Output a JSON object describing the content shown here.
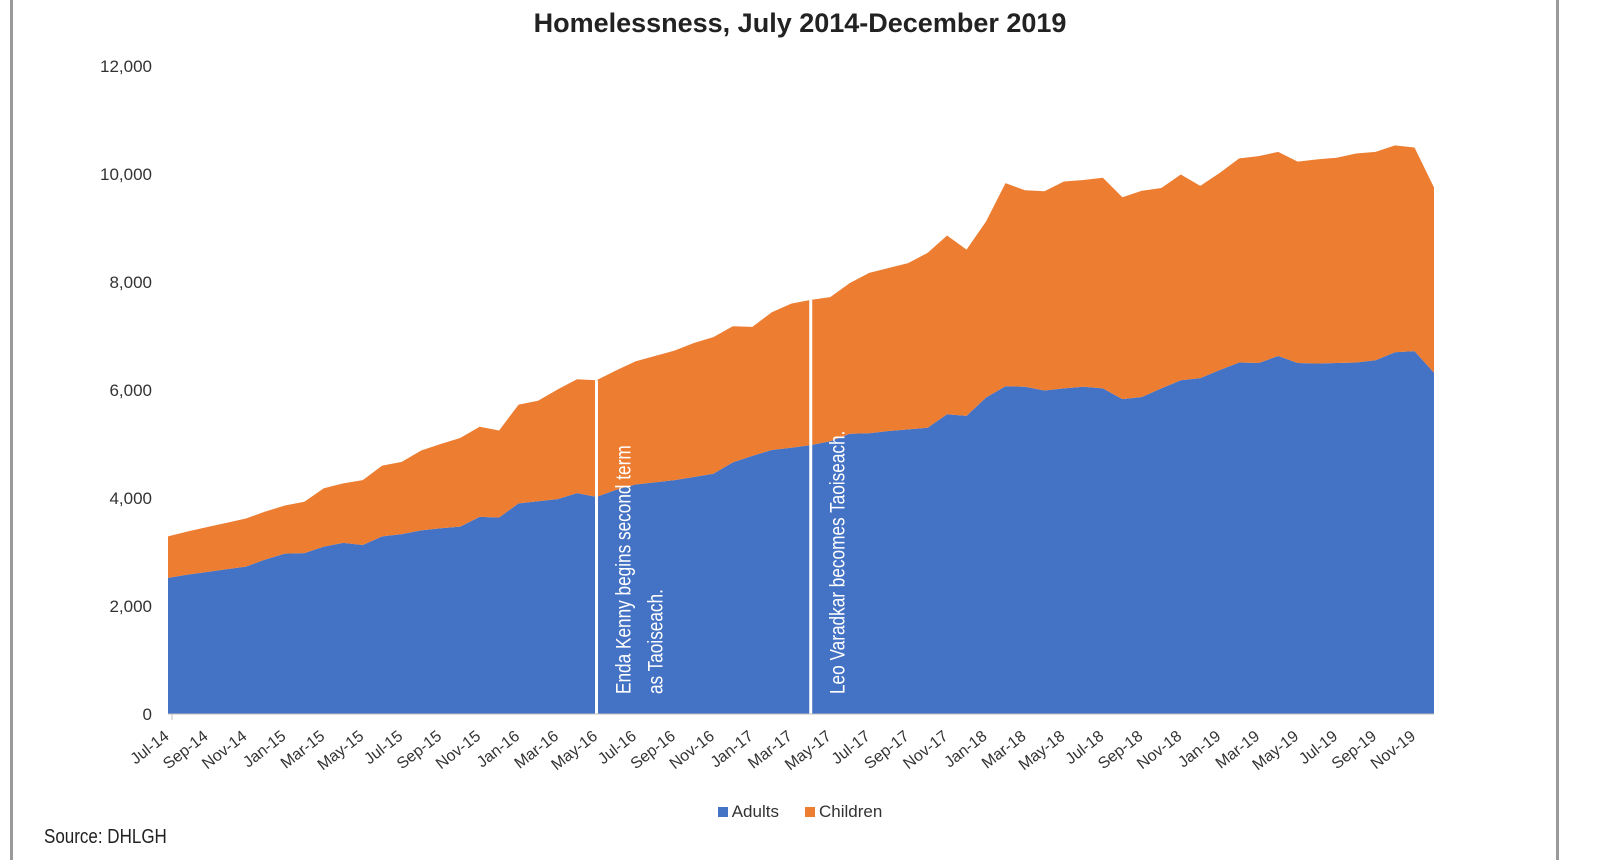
{
  "chart_data": {
    "type": "area",
    "stacked": true,
    "title": "Homelessness, July 2014-December 2019",
    "ylim": [
      0,
      12000
    ],
    "yticks": [
      0,
      2000,
      4000,
      6000,
      8000,
      10000,
      12000
    ],
    "ytick_labels": [
      "0",
      "2,000",
      "4,000",
      "6,000",
      "8,000",
      "10,000",
      "12,000"
    ],
    "x": [
      "Jul-14",
      "Aug-14",
      "Sep-14",
      "Oct-14",
      "Nov-14",
      "Dec-14",
      "Jan-15",
      "Feb-15",
      "Mar-15",
      "Apr-15",
      "May-15",
      "Jun-15",
      "Jul-15",
      "Aug-15",
      "Sep-15",
      "Oct-15",
      "Nov-15",
      "Dec-15",
      "Jan-16",
      "Feb-16",
      "Mar-16",
      "Apr-16",
      "May-16",
      "Jun-16",
      "Jul-16",
      "Aug-16",
      "Sep-16",
      "Oct-16",
      "Nov-16",
      "Dec-16",
      "Jan-17",
      "Feb-17",
      "Mar-17",
      "Apr-17",
      "May-17",
      "Jun-17",
      "Jul-17",
      "Aug-17",
      "Sep-17",
      "Oct-17",
      "Nov-17",
      "Dec-17",
      "Jan-18",
      "Feb-18",
      "Mar-18",
      "Apr-18",
      "May-18",
      "Jun-18",
      "Jul-18",
      "Aug-18",
      "Sep-18",
      "Oct-18",
      "Nov-18",
      "Dec-18",
      "Jan-19",
      "Feb-19",
      "Mar-19",
      "Apr-19",
      "May-19",
      "Jun-19",
      "Jul-19",
      "Aug-19",
      "Sep-19",
      "Oct-19",
      "Nov-19",
      "Dec-19"
    ],
    "x_tick_labels": [
      "Jul-14",
      "Sep-14",
      "Nov-14",
      "Jan-15",
      "Mar-15",
      "May-15",
      "Jul-15",
      "Sep-15",
      "Nov-15",
      "Jan-16",
      "Mar-16",
      "May-16",
      "Jul-16",
      "Sep-16",
      "Nov-16",
      "Jan-17",
      "Mar-17",
      "May-17",
      "Jul-17",
      "Sep-17",
      "Nov-17",
      "Jan-18",
      "Mar-18",
      "May-18",
      "Jul-18",
      "Sep-18",
      "Nov-18",
      "Jan-19",
      "Mar-19",
      "May-19",
      "Jul-19",
      "Sep-19",
      "Nov-19"
    ],
    "series": [
      {
        "name": "Adults",
        "color": "#4472C4",
        "values": [
          2520,
          2580,
          2630,
          2680,
          2730,
          2860,
          2970,
          2980,
          3100,
          3170,
          3130,
          3290,
          3330,
          3400,
          3440,
          3470,
          3650,
          3640,
          3900,
          3940,
          3980,
          4090,
          4020,
          4150,
          4250,
          4290,
          4330,
          4390,
          4450,
          4660,
          4780,
          4890,
          4930,
          4980,
          5050,
          5190,
          5200,
          5240,
          5270,
          5300,
          5550,
          5520,
          5860,
          6070,
          6060,
          5990,
          6030,
          6060,
          6030,
          5830,
          5870,
          6030,
          6180,
          6220,
          6370,
          6510,
          6500,
          6630,
          6500,
          6490,
          6500,
          6510,
          6550,
          6700,
          6720,
          6320
        ]
      },
      {
        "name": "Children",
        "color": "#ED7D31",
        "values": [
          770,
          800,
          830,
          860,
          890,
          890,
          890,
          950,
          1080,
          1100,
          1200,
          1310,
          1340,
          1480,
          1560,
          1640,
          1670,
          1610,
          1830,
          1860,
          2030,
          2110,
          2160,
          2210,
          2280,
          2340,
          2400,
          2480,
          2530,
          2520,
          2390,
          2550,
          2670,
          2690,
          2670,
          2790,
          2970,
          3020,
          3080,
          3240,
          3310,
          3080,
          3260,
          3760,
          3640,
          3690,
          3830,
          3830,
          3900,
          3740,
          3820,
          3710,
          3810,
          3560,
          3650,
          3780,
          3830,
          3780,
          3730,
          3780,
          3800,
          3870,
          3860,
          3830,
          3770,
          3430
        ]
      }
    ],
    "annotations": [
      {
        "at": "May-16",
        "lines": [
          "Enda Kenny begins second term",
          "as Taoiseach."
        ]
      },
      {
        "at": "Apr-17",
        "lines": [
          "Leo Varadkar becomes Taoiseach."
        ]
      }
    ],
    "legend": {
      "position": "bottom",
      "entries": [
        "Adults",
        "Children"
      ]
    },
    "grid": false
  },
  "source_text": "Source: DHLGH"
}
